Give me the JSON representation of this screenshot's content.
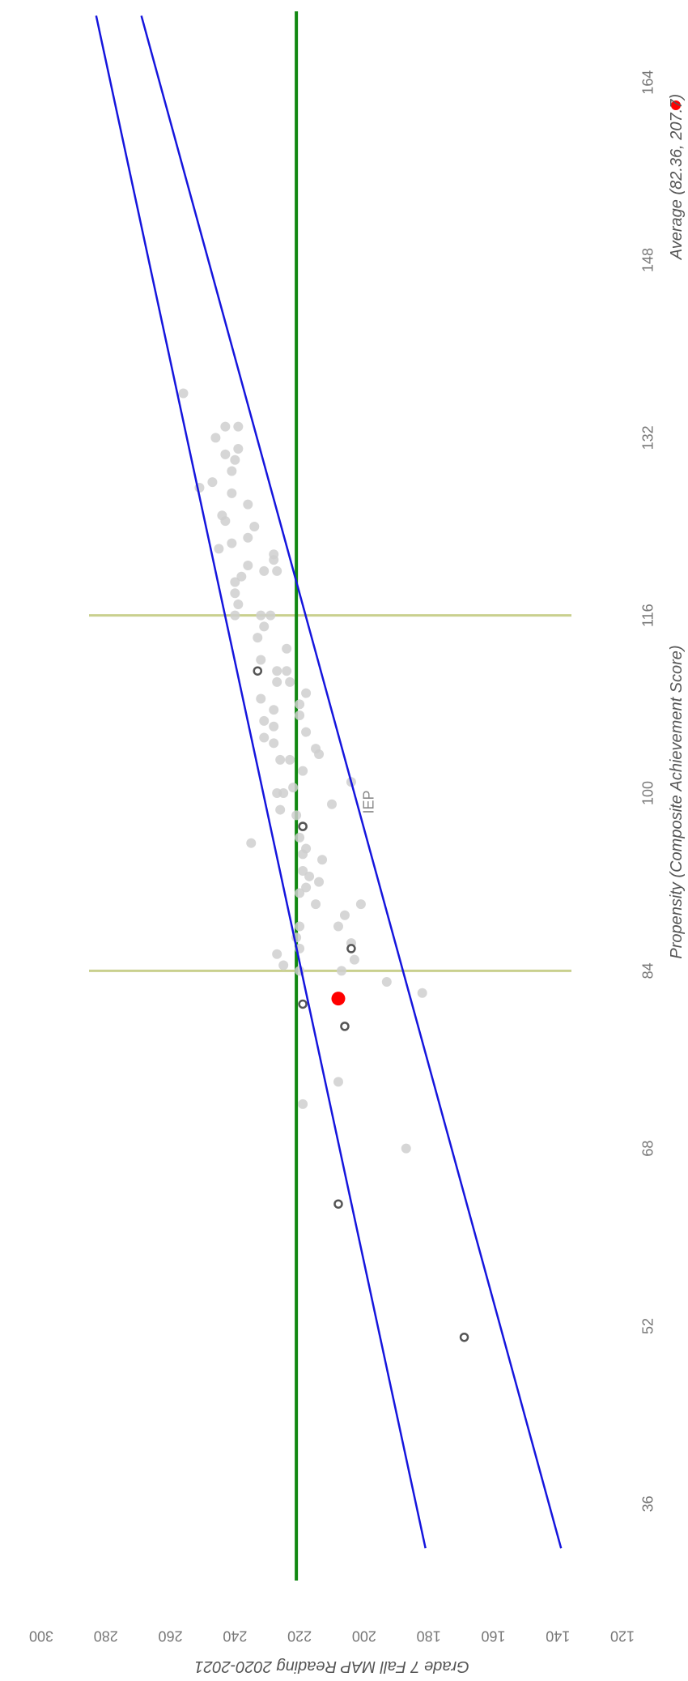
{
  "chart_data": {
    "type": "scatter",
    "title": "IEP",
    "xlabel": "Propensity (Composite Achievement Score)",
    "ylabel": "Grade 7 Fall MAP Reading 2020-2021",
    "xlim": [
      28,
      172
    ],
    "ylim": [
      120,
      300
    ],
    "x_ticks": [
      "36",
      "52",
      "68",
      "84",
      "100",
      "116",
      "132",
      "148",
      "164"
    ],
    "y_ticks": [
      "120",
      "140",
      "160",
      "180",
      "200",
      "220",
      "240",
      "260",
      "280",
      "300"
    ],
    "horizontal_line": {
      "y": 221,
      "color": "#118811"
    },
    "vertical_lines": {
      "x": [
        84,
        116
      ],
      "color": "#c9d08e"
    },
    "regression_lines": [
      {
        "x": [
          32,
          170
        ],
        "y": [
          181,
          283
        ],
        "color": "#1515dd"
      },
      {
        "x": [
          32,
          170
        ],
        "y": [
          139,
          269
        ],
        "color": "#1515dd"
      }
    ],
    "other_students": {
      "color": "#cfcfcf",
      "points": [
        [
          72,
          219
        ],
        [
          74,
          208
        ],
        [
          84,
          220
        ],
        [
          84,
          207
        ],
        [
          85,
          203
        ],
        [
          83,
          193
        ],
        [
          82,
          182
        ],
        [
          68,
          187
        ],
        [
          84.5,
          225
        ],
        [
          85.5,
          227
        ],
        [
          86,
          220
        ],
        [
          86.5,
          204
        ],
        [
          87,
          221
        ],
        [
          88,
          220
        ],
        [
          88,
          208
        ],
        [
          89,
          206
        ],
        [
          90,
          201
        ],
        [
          90,
          215
        ],
        [
          91,
          220
        ],
        [
          91.5,
          218
        ],
        [
          92,
          214
        ],
        [
          92.5,
          217
        ],
        [
          93,
          219
        ],
        [
          94,
          213
        ],
        [
          94.5,
          219
        ],
        [
          95,
          218
        ],
        [
          95.5,
          235
        ],
        [
          96,
          220
        ],
        [
          97,
          219
        ],
        [
          98,
          221
        ],
        [
          98.5,
          226
        ],
        [
          99,
          210
        ],
        [
          100,
          227
        ],
        [
          100,
          225
        ],
        [
          100.5,
          222
        ],
        [
          101,
          204
        ],
        [
          102,
          219
        ],
        [
          103,
          226
        ],
        [
          103,
          223
        ],
        [
          103.5,
          214
        ],
        [
          104,
          215
        ],
        [
          104.5,
          228
        ],
        [
          105,
          231
        ],
        [
          105.5,
          218
        ],
        [
          106,
          228
        ],
        [
          106.5,
          231
        ],
        [
          107,
          220
        ],
        [
          107.5,
          228
        ],
        [
          108,
          220
        ],
        [
          108.5,
          232
        ],
        [
          109,
          218
        ],
        [
          110,
          227
        ],
        [
          110,
          223
        ],
        [
          111,
          224
        ],
        [
          111,
          227
        ],
        [
          112,
          232
        ],
        [
          113,
          224
        ],
        [
          114,
          233
        ],
        [
          115,
          231
        ],
        [
          116,
          232
        ],
        [
          116,
          229
        ],
        [
          116,
          240
        ],
        [
          117,
          239
        ],
        [
          118,
          240
        ],
        [
          119,
          240
        ],
        [
          119.5,
          238
        ],
        [
          120,
          231
        ],
        [
          120,
          227
        ],
        [
          120.5,
          236
        ],
        [
          121,
          228
        ],
        [
          121.5,
          228
        ],
        [
          122,
          245
        ],
        [
          122.5,
          241
        ],
        [
          123,
          236
        ],
        [
          124,
          234
        ],
        [
          124.5,
          243
        ],
        [
          125,
          244
        ],
        [
          126,
          236
        ],
        [
          127,
          241
        ],
        [
          127.5,
          251
        ],
        [
          128,
          247
        ],
        [
          129,
          241
        ],
        [
          130,
          240
        ],
        [
          130.5,
          243
        ],
        [
          131,
          239
        ],
        [
          132,
          246
        ],
        [
          133,
          243
        ],
        [
          133,
          239
        ],
        [
          136,
          256
        ]
      ]
    },
    "highlighted_students": {
      "color": "#555555",
      "points": [
        [
          51,
          169
        ],
        [
          63,
          208
        ],
        [
          79,
          206
        ],
        [
          81,
          219
        ],
        [
          86,
          204
        ],
        [
          97,
          219
        ],
        [
          111,
          233
        ]
      ]
    },
    "selected_student": {
      "color": "#ff0000",
      "x": 81.5,
      "y": 208
    },
    "legend": {
      "label": "Average (82.36, 207.7)",
      "position": "bottom-right"
    }
  }
}
